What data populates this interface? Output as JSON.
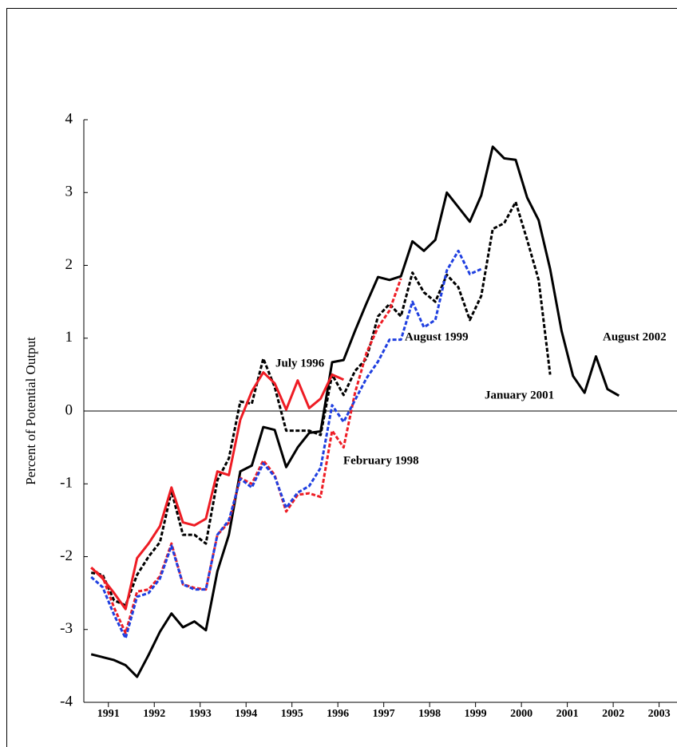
{
  "chart_data": {
    "type": "line",
    "y_label": "Percent of Potential Output",
    "x": [
      1991.125,
      1991.375,
      1991.625,
      1991.875,
      1992.125,
      1992.375,
      1992.625,
      1992.875,
      1993.125,
      1993.375,
      1993.625,
      1993.875,
      1994.125,
      1994.375,
      1994.625,
      1994.875,
      1995.125,
      1995.375,
      1995.625,
      1995.875,
      1996.125,
      1996.375,
      1996.625,
      1996.875,
      1997.125,
      1997.375,
      1997.625,
      1997.875,
      1998.125,
      1998.375,
      1998.625,
      1998.875,
      1999.125,
      1999.375,
      1999.625,
      1999.875,
      2000.125,
      2000.375,
      2000.625,
      2000.875,
      2001.125,
      2001.375,
      2001.625,
      2001.875,
      2002.125,
      2002.375,
      2002.625
    ],
    "xlim": [
      1990.965,
      2003.89
    ],
    "xticks": [
      {
        "value": 1991.5,
        "label": "1991"
      },
      {
        "value": 1992.5,
        "label": "1992"
      },
      {
        "value": 1993.5,
        "label": "1993"
      },
      {
        "value": 1994.5,
        "label": "1994"
      },
      {
        "value": 1995.5,
        "label": "1995"
      },
      {
        "value": 1996.5,
        "label": "1996"
      },
      {
        "value": 1997.5,
        "label": "1997"
      },
      {
        "value": 1998.5,
        "label": "1998"
      },
      {
        "value": 1999.5,
        "label": "1999"
      },
      {
        "value": 2000.5,
        "label": "2000"
      },
      {
        "value": 2001.5,
        "label": "2001"
      },
      {
        "value": 2002.5,
        "label": "2002"
      },
      {
        "value": 2003.5,
        "label": "2003"
      }
    ],
    "ylim": [
      -4,
      4
    ],
    "yticks": [
      -4,
      -3,
      -2,
      -1,
      0,
      1,
      2,
      3,
      4
    ],
    "series": [
      {
        "name": "August 2002",
        "color": "#000000",
        "dashed": false,
        "values": [
          -3.34,
          -3.38,
          -3.42,
          -3.49,
          -3.65,
          -3.35,
          -3.03,
          -2.78,
          -2.97,
          -2.89,
          -3.01,
          -2.2,
          -1.7,
          -0.83,
          -0.75,
          -0.22,
          -0.26,
          -0.77,
          -0.5,
          -0.3,
          -0.28,
          0.67,
          0.7,
          1.1,
          1.48,
          1.84,
          1.8,
          1.85,
          2.33,
          2.2,
          2.35,
          3.0,
          2.8,
          2.6,
          2.96,
          3.63,
          3.47,
          3.45,
          2.93,
          2.62,
          1.95,
          1.1,
          0.48,
          0.25,
          0.75,
          0.3,
          0.21
        ]
      },
      {
        "name": "January 2001",
        "color": "#000000",
        "dashed": true,
        "values": [
          -2.22,
          -2.25,
          -2.6,
          -2.67,
          -2.25,
          -2.0,
          -1.8,
          -1.1,
          -1.7,
          -1.7,
          -1.82,
          -0.95,
          -0.65,
          0.13,
          0.1,
          0.72,
          0.33,
          -0.27,
          -0.27,
          -0.27,
          -0.33,
          0.5,
          0.22,
          0.55,
          0.72,
          1.3,
          1.47,
          1.3,
          1.9,
          1.63,
          1.5,
          1.87,
          1.7,
          1.25,
          1.58,
          2.5,
          2.58,
          2.87,
          2.35,
          1.8,
          0.5,
          null,
          null,
          null,
          null,
          null,
          null
        ]
      },
      {
        "name": "July 1996",
        "color": "#ee1c24",
        "dashed": false,
        "values": [
          -2.15,
          -2.3,
          -2.5,
          -2.72,
          -2.02,
          -1.82,
          -1.58,
          -1.05,
          -1.53,
          -1.57,
          -1.48,
          -0.83,
          -0.88,
          -0.12,
          0.27,
          0.53,
          0.38,
          0.02,
          0.42,
          0.04,
          0.17,
          0.5,
          0.43,
          null,
          null,
          null,
          null,
          null,
          null,
          null,
          null,
          null,
          null,
          null,
          null,
          null,
          null,
          null,
          null,
          null,
          null,
          null,
          null,
          null,
          null,
          null,
          null
        ]
      },
      {
        "name": "February 1998",
        "color": "#ee1c24",
        "dashed": true,
        "values": [
          -2.15,
          -2.28,
          -2.7,
          -3.05,
          -2.48,
          -2.45,
          -2.27,
          -1.82,
          -2.38,
          -2.43,
          -2.45,
          -1.7,
          -1.53,
          -0.92,
          -1.0,
          -0.68,
          -0.88,
          -1.38,
          -1.15,
          -1.13,
          -1.18,
          -0.27,
          -0.5,
          0.25,
          0.8,
          1.15,
          1.38,
          1.82,
          null,
          null,
          null,
          null,
          null,
          null,
          null,
          null,
          null,
          null,
          null,
          null,
          null,
          null,
          null,
          null,
          null,
          null,
          null
        ]
      },
      {
        "name": "August 1999",
        "color": "#1f3fe0",
        "dashed": true,
        "values": [
          -2.28,
          -2.42,
          -2.8,
          -3.12,
          -2.55,
          -2.5,
          -2.3,
          -1.85,
          -2.38,
          -2.45,
          -2.45,
          -1.7,
          -1.5,
          -0.93,
          -1.05,
          -0.72,
          -0.9,
          -1.33,
          -1.12,
          -1.03,
          -0.78,
          0.08,
          -0.15,
          0.15,
          0.45,
          0.68,
          0.98,
          0.98,
          1.5,
          1.15,
          1.25,
          1.93,
          2.2,
          1.88,
          1.95,
          null,
          null,
          null,
          null,
          null,
          null,
          null,
          null,
          null,
          null,
          null,
          null
        ]
      }
    ]
  }
}
